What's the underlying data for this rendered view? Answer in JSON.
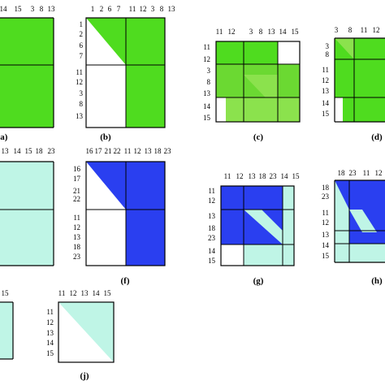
{
  "colors": {
    "green_bright": "#4fdc1f",
    "green_mid": "#6bd932",
    "green_light": "#8be24d",
    "blue": "#2a3ff0",
    "mint": "#bff5e6",
    "white": "#ffffff",
    "line": "#000000"
  },
  "panels": [
    {
      "id": "a",
      "caption": "(a)",
      "top_labels": [
        "14",
        "15",
        "3",
        "8",
        "13"
      ],
      "left_labels": []
    },
    {
      "id": "b",
      "caption": "(b)",
      "top_labels": [
        "1",
        "2",
        "6",
        "7",
        "11",
        "12",
        "3",
        "8",
        "13"
      ],
      "left_labels": [
        "1",
        "2",
        "6",
        "7",
        "11",
        "12",
        "3",
        "8",
        "13"
      ]
    },
    {
      "id": "c",
      "caption": "(c)",
      "top_labels": [
        "11",
        "12",
        "3",
        "8",
        "13",
        "14",
        "15"
      ],
      "left_labels": [
        "11",
        "12",
        "3",
        "8",
        "13",
        "14",
        "15"
      ]
    },
    {
      "id": "d",
      "caption": "(d)",
      "top_labels": [
        "3",
        "8",
        "11",
        "12"
      ],
      "left_labels": [
        "3",
        "8",
        "11",
        "12",
        "13",
        "14",
        "15"
      ]
    },
    {
      "id": "e",
      "caption": "",
      "top_labels": [
        "13",
        "14",
        "15",
        "18",
        "23"
      ],
      "left_labels": []
    },
    {
      "id": "f",
      "caption": "(f)",
      "top_labels": [
        "16",
        "17",
        "21",
        "22",
        "11",
        "12",
        "13",
        "18",
        "23"
      ],
      "left_labels": [
        "16",
        "17",
        "21",
        "22",
        "11",
        "12",
        "13",
        "18",
        "23"
      ]
    },
    {
      "id": "g",
      "caption": "(g)",
      "top_labels": [
        "11",
        "12",
        "13",
        "18",
        "23",
        "14",
        "15"
      ],
      "left_labels": [
        "11",
        "12",
        "13",
        "18",
        "23",
        "14",
        "15"
      ]
    },
    {
      "id": "h",
      "caption": "(h)",
      "top_labels": [
        "18",
        "23",
        "11",
        "12"
      ],
      "left_labels": [
        "18",
        "23",
        "11",
        "12",
        "13",
        "14",
        "15"
      ]
    },
    {
      "id": "i",
      "caption": "",
      "top_labels": [
        "15"
      ],
      "left_labels": []
    },
    {
      "id": "j",
      "caption": "(j)",
      "top_labels": [
        "11",
        "12",
        "13",
        "14",
        "15"
      ],
      "left_labels": [
        "11",
        "12",
        "13",
        "14",
        "15"
      ]
    }
  ]
}
